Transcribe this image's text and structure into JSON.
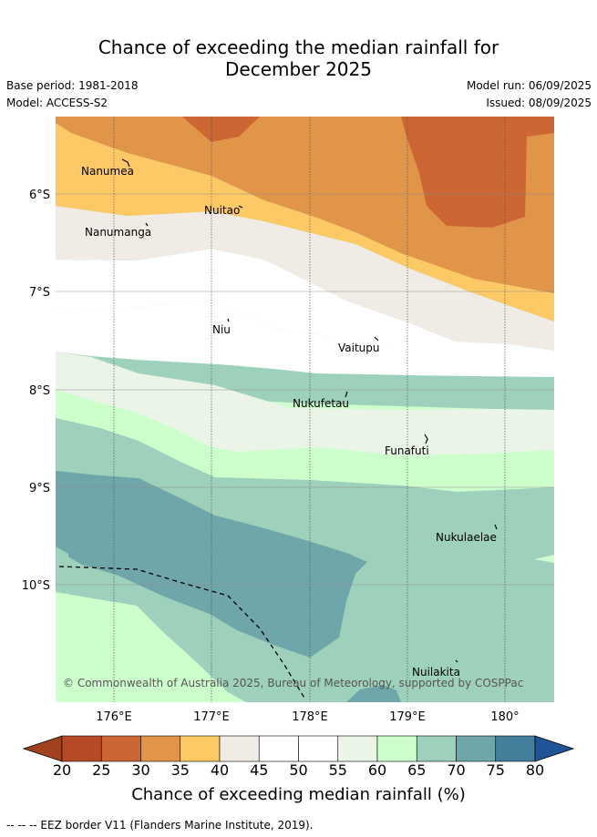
{
  "title_line1": "Chance of exceeding the median rainfall for",
  "title_line2": "December 2025",
  "base_period": "Base period: 1981-2018",
  "model": "Model: ACCESS-S2",
  "model_run": "Model run: 06/09/2025",
  "issued": "Issued: 08/09/2025",
  "map": {
    "lat_labels": [
      "6°S",
      "7°S",
      "8°S",
      "9°S",
      "10°S"
    ],
    "lon_labels": [
      "176°E",
      "177°E",
      "178°E",
      "179°E",
      "180°"
    ],
    "places": [
      "Nanumea",
      "Nuitao",
      "Nanumanga",
      "Niu",
      "Vaitupu",
      "Nukufetau",
      "Funafuti",
      "Nukulaelae",
      "Nuilakita"
    ],
    "copyright": "© Commonwealth of Australia 2025, Bureau of Meteorology, supported by COSPPac"
  },
  "colorbar": {
    "ticks": [
      "20",
      "25",
      "30",
      "35",
      "40",
      "45",
      "50",
      "55",
      "60",
      "65",
      "70",
      "75",
      "80"
    ],
    "colors": [
      "#b64a26",
      "#cc6633",
      "#e09548",
      "#fdc965",
      "#f0ebe5",
      "#ffffff",
      "#ffffff",
      "#eaf5e8",
      "#ccffcc",
      "#9ed1bb",
      "#6ea6a9",
      "#437f9b"
    ],
    "under_color": "#a0411f",
    "over_color": "#1f5597",
    "label": "Chance of exceeding median rainfall (%)"
  },
  "footnote": "-- -- -- EEZ border V11 (Flanders Marine Institute, 2019)."
}
